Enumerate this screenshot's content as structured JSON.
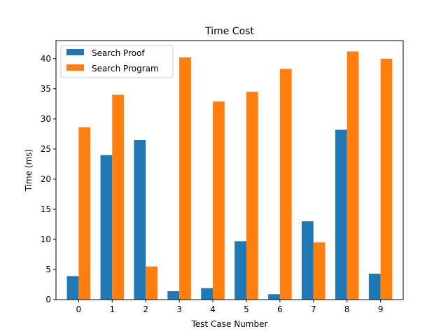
{
  "chart_data": {
    "type": "bar",
    "title": "Time Cost",
    "xlabel": "Test Case Number",
    "ylabel": "Time (ms)",
    "categories": [
      "0",
      "1",
      "2",
      "3",
      "4",
      "5",
      "6",
      "7",
      "8",
      "9"
    ],
    "ylim": [
      0,
      43
    ],
    "yticks": [
      0,
      5,
      10,
      15,
      20,
      25,
      30,
      35,
      40
    ],
    "series": [
      {
        "name": "Search Proof",
        "color": "#1f77b4",
        "values": [
          3.9,
          24.0,
          26.5,
          1.4,
          1.9,
          9.7,
          0.9,
          13.0,
          28.2,
          4.3
        ]
      },
      {
        "name": "Search Program",
        "color": "#ff7f0e",
        "values": [
          28.6,
          34.0,
          5.5,
          40.2,
          32.9,
          34.5,
          38.3,
          9.5,
          41.2,
          40.0
        ]
      }
    ],
    "legend_position": "upper-left",
    "grid": false
  }
}
